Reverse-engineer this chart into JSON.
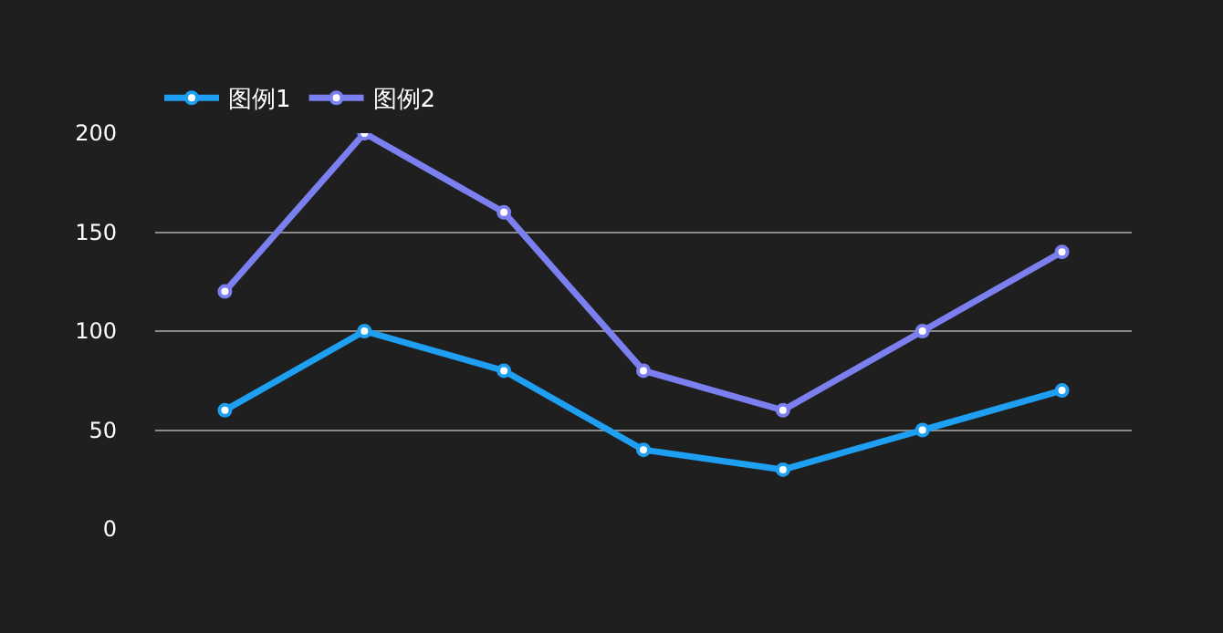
{
  "chart_data": {
    "type": "line",
    "categories": [
      null,
      null,
      null,
      null,
      null,
      null,
      null
    ],
    "series": [
      {
        "name": "图例1",
        "color": "#1e9ff2",
        "values": [
          60,
          100,
          80,
          40,
          30,
          50,
          70
        ]
      },
      {
        "name": "图例2",
        "color": "#7b7ff0",
        "values": [
          120,
          200,
          160,
          80,
          60,
          100,
          140
        ]
      }
    ],
    "ylim": [
      0,
      200
    ],
    "yticks": [
      0,
      50,
      100,
      150,
      200
    ],
    "grid": "y",
    "legend": "top left",
    "marker": "circle",
    "line_style": "solid",
    "tick_labels": "y"
  }
}
